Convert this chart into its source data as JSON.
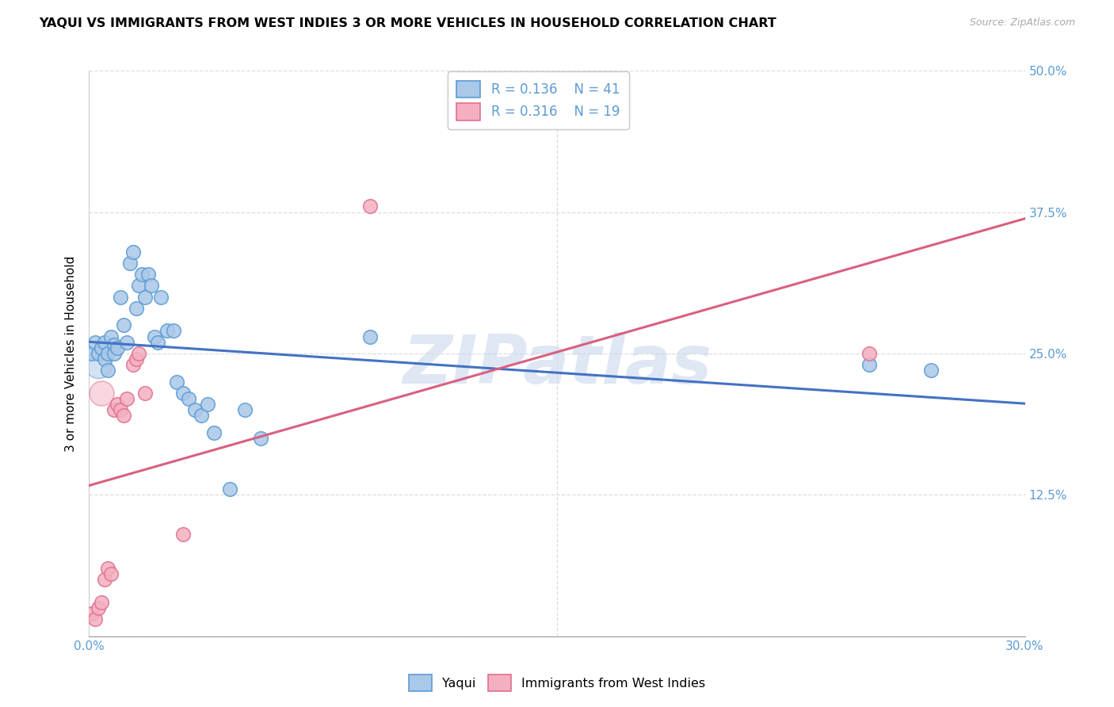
{
  "title": "YAQUI VS IMMIGRANTS FROM WEST INDIES 3 OR MORE VEHICLES IN HOUSEHOLD CORRELATION CHART",
  "source": "Source: ZipAtlas.com",
  "ylabel": "3 or more Vehicles in Household",
  "xlim": [
    0.0,
    0.3
  ],
  "ylim": [
    0.0,
    0.5
  ],
  "xtick_vals": [
    0.0,
    0.3
  ],
  "xtick_labels": [
    "0.0%",
    "30.0%"
  ],
  "ytick_vals": [
    0.0,
    0.125,
    0.25,
    0.375,
    0.5
  ],
  "ytick_labels": [
    "",
    "12.5%",
    "25.0%",
    "37.5%",
    "50.0%"
  ],
  "R_yaqui": 0.136,
  "N_yaqui": 41,
  "R_west_indies": 0.316,
  "N_west_indies": 19,
  "yaqui_fill": "#aac8e8",
  "yaqui_edge": "#5b9bd5",
  "west_indies_fill": "#f4b0c0",
  "west_indies_edge": "#e07090",
  "yaqui_line_color": "#4472c4",
  "west_indies_line_color": "#d96080",
  "tick_label_color": "#5b9bd5",
  "background_color": "#ffffff",
  "grid_color": "#dddddd",
  "watermark": "ZIPatlas",
  "yaqui_x": [
    0.001,
    0.002,
    0.003,
    0.004,
    0.005,
    0.005,
    0.006,
    0.006,
    0.007,
    0.008,
    0.008,
    0.009,
    0.01,
    0.011,
    0.012,
    0.013,
    0.014,
    0.015,
    0.016,
    0.017,
    0.018,
    0.019,
    0.02,
    0.021,
    0.022,
    0.023,
    0.025,
    0.027,
    0.028,
    0.03,
    0.032,
    0.034,
    0.036,
    0.038,
    0.04,
    0.045,
    0.05,
    0.055,
    0.09,
    0.25,
    0.27
  ],
  "yaqui_y": [
    0.25,
    0.26,
    0.25,
    0.255,
    0.245,
    0.26,
    0.25,
    0.235,
    0.265,
    0.258,
    0.25,
    0.255,
    0.3,
    0.275,
    0.26,
    0.33,
    0.34,
    0.29,
    0.31,
    0.32,
    0.3,
    0.32,
    0.31,
    0.265,
    0.26,
    0.3,
    0.27,
    0.27,
    0.225,
    0.215,
    0.21,
    0.2,
    0.195,
    0.205,
    0.18,
    0.13,
    0.2,
    0.175,
    0.265,
    0.24,
    0.235
  ],
  "west_indies_x": [
    0.001,
    0.002,
    0.003,
    0.004,
    0.005,
    0.006,
    0.007,
    0.008,
    0.009,
    0.01,
    0.011,
    0.012,
    0.014,
    0.015,
    0.016,
    0.018,
    0.03,
    0.09,
    0.25
  ],
  "west_indies_y": [
    0.02,
    0.015,
    0.025,
    0.03,
    0.05,
    0.06,
    0.055,
    0.2,
    0.205,
    0.2,
    0.195,
    0.21,
    0.24,
    0.245,
    0.25,
    0.215,
    0.09,
    0.38,
    0.25
  ]
}
